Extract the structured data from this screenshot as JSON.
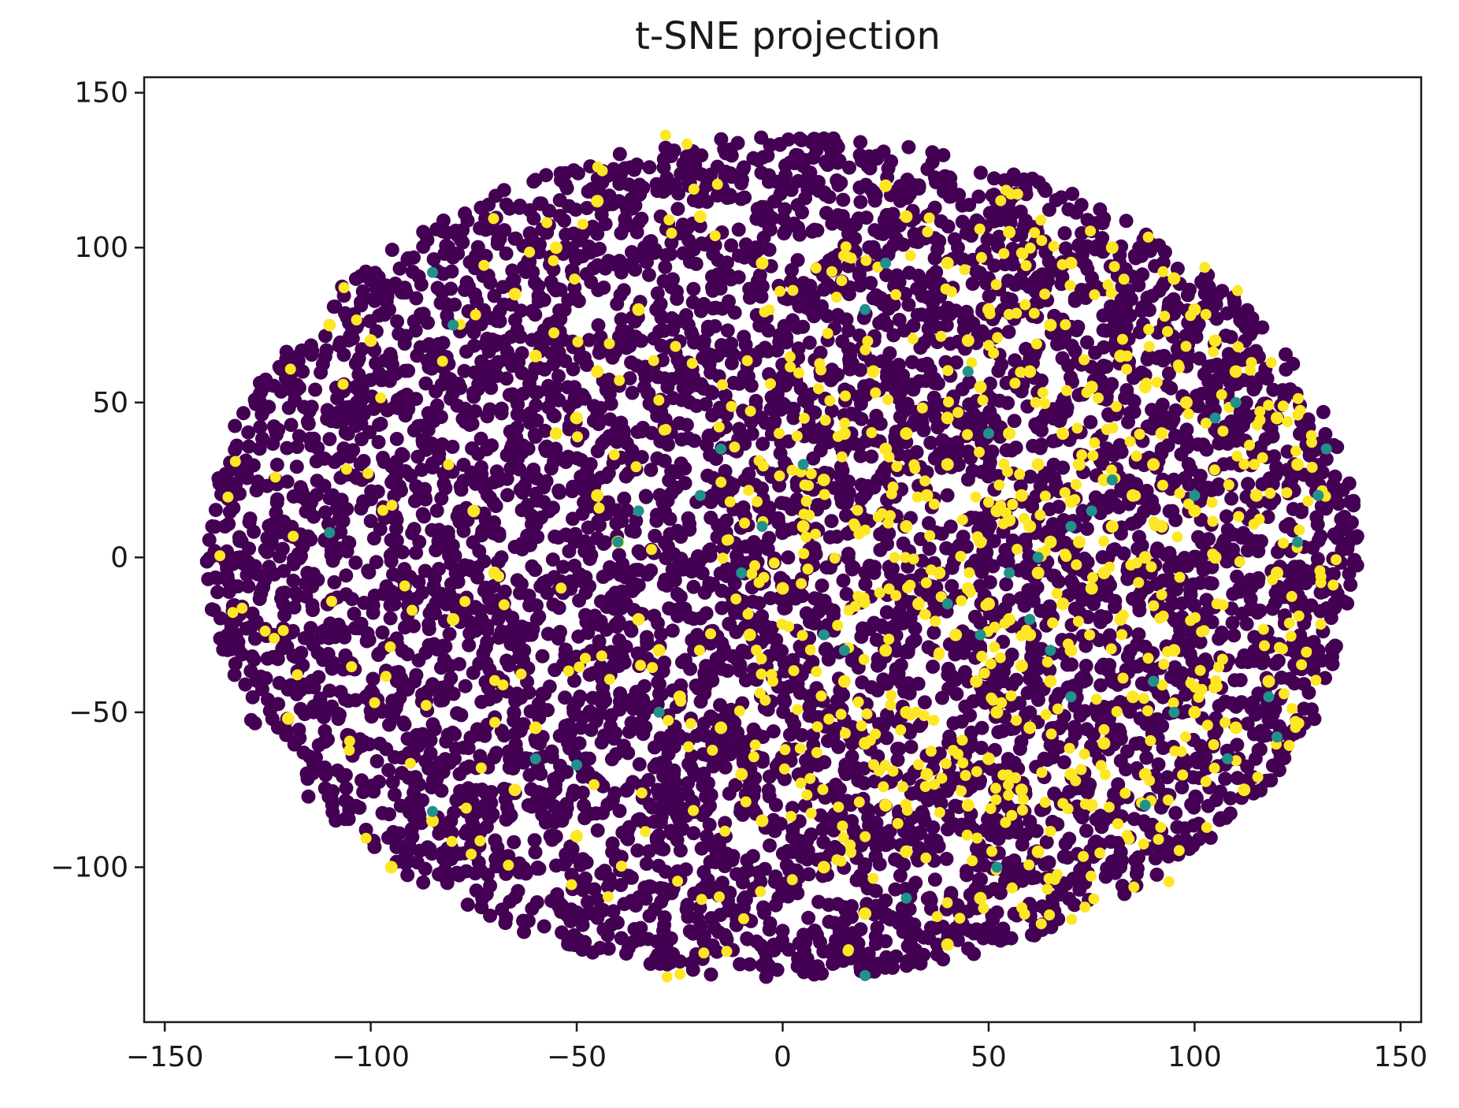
{
  "chart_data": {
    "type": "scatter",
    "title": "t-SNE projection",
    "xlabel": "",
    "ylabel": "",
    "xlim": [
      -155,
      155
    ],
    "ylim": [
      -150,
      155
    ],
    "xticks": [
      -150,
      -100,
      -50,
      0,
      50,
      100,
      150
    ],
    "xtick_labels": [
      "−150",
      "−100",
      "−50",
      "0",
      "50",
      "100",
      "150"
    ],
    "yticks": [
      -100,
      -50,
      0,
      50,
      100,
      150
    ],
    "ytick_labels": [
      "−100",
      "−50",
      "0",
      "50",
      "100",
      "150"
    ],
    "grid": false,
    "legend": "none",
    "colors": {
      "class_0": "#440154",
      "class_1": "#21918c",
      "class_2": "#fde725"
    },
    "shape": {
      "center": [
        0,
        0
      ],
      "radius_x": 140,
      "radius_y": 140
    },
    "series": [
      {
        "color": "#440154",
        "note_count": 6000,
        "points": []
      },
      {
        "color": "#fde725",
        "points": [
          [
            55,
            12
          ],
          [
            60,
            10
          ],
          [
            52,
            15
          ],
          [
            65,
            5
          ],
          [
            58,
            20
          ],
          [
            70,
            18
          ],
          [
            62,
            -5
          ],
          [
            50,
            -15
          ],
          [
            55,
            -20
          ],
          [
            60,
            -25
          ],
          [
            45,
            -10
          ],
          [
            48,
            5
          ],
          [
            72,
            30
          ],
          [
            78,
            25
          ],
          [
            68,
            40
          ],
          [
            80,
            10
          ],
          [
            85,
            20
          ],
          [
            90,
            30
          ],
          [
            75,
            -10
          ],
          [
            82,
            -20
          ],
          [
            70,
            -30
          ],
          [
            65,
            -40
          ],
          [
            58,
            -35
          ],
          [
            40,
            30
          ],
          [
            35,
            20
          ],
          [
            30,
            10
          ],
          [
            38,
            -5
          ],
          [
            42,
            -25
          ],
          [
            47,
            -40
          ],
          [
            52,
            -50
          ],
          [
            30,
            40
          ],
          [
            25,
            35
          ],
          [
            95,
            90
          ],
          [
            100,
            80
          ],
          [
            105,
            70
          ],
          [
            110,
            60
          ],
          [
            98,
            50
          ],
          [
            120,
            45
          ],
          [
            125,
            30
          ],
          [
            115,
            20
          ],
          [
            120,
            -5
          ],
          [
            118,
            -40
          ],
          [
            110,
            -55
          ],
          [
            112,
            -75
          ],
          [
            88,
            -70
          ],
          [
            75,
            -80
          ],
          [
            62,
            -95
          ],
          [
            48,
            -110
          ],
          [
            40,
            -125
          ],
          [
            20,
            -115
          ],
          [
            10,
            -100
          ],
          [
            -5,
            -85
          ],
          [
            -10,
            -70
          ],
          [
            -15,
            -55
          ],
          [
            -25,
            -45
          ],
          [
            -30,
            -30
          ],
          [
            -35,
            -20
          ],
          [
            -40,
            5
          ],
          [
            -45,
            20
          ],
          [
            -55,
            40
          ],
          [
            -60,
            65
          ],
          [
            -65,
            85
          ],
          [
            -55,
            100
          ],
          [
            -45,
            115
          ],
          [
            -20,
            110
          ],
          [
            -5,
            95
          ],
          [
            25,
            120
          ],
          [
            30,
            110
          ],
          [
            40,
            95
          ],
          [
            55,
            105
          ],
          [
            70,
            95
          ],
          [
            80,
            100
          ],
          [
            22,
            60
          ],
          [
            15,
            40
          ],
          [
            10,
            25
          ],
          [
            5,
            10
          ],
          [
            0,
            -10
          ],
          [
            -8,
            -25
          ],
          [
            15,
            -40
          ],
          [
            20,
            -60
          ],
          [
            25,
            -80
          ],
          [
            30,
            -95
          ],
          [
            -80,
            -20
          ],
          [
            -85,
            -85
          ],
          [
            -95,
            -100
          ],
          [
            -120,
            -52
          ],
          [
            -110,
            75
          ],
          [
            -100,
            70
          ],
          [
            -75,
            15
          ],
          [
            -70,
            -5
          ],
          [
            -60,
            -55
          ],
          [
            -50,
            -90
          ],
          [
            -65,
            -75
          ],
          [
            -45,
            60
          ],
          [
            -50,
            45
          ],
          [
            -35,
            80
          ],
          [
            60,
            60
          ],
          [
            65,
            75
          ],
          [
            50,
            80
          ],
          [
            45,
            70
          ],
          [
            88,
            55
          ],
          [
            92,
            40
          ],
          [
            100,
            15
          ],
          [
            105,
            0
          ],
          [
            95,
            -30
          ],
          [
            100,
            -50
          ],
          [
            85,
            -45
          ],
          [
            78,
            -60
          ],
          [
            70,
            -70
          ],
          [
            58,
            -75
          ],
          [
            45,
            -80
          ],
          [
            35,
            -70
          ],
          [
            30,
            -50
          ],
          [
            25,
            -30
          ],
          [
            33,
            -15
          ],
          [
            40,
            45
          ],
          [
            48,
            55
          ],
          [
            55,
            40
          ],
          [
            62,
            30
          ],
          [
            72,
            5
          ],
          [
            78,
            -5
          ],
          [
            88,
            0
          ],
          [
            92,
            10
          ],
          [
            68,
            -15
          ],
          [
            60,
            -55
          ],
          [
            50,
            -65
          ],
          [
            82,
            65
          ],
          [
            75,
            55
          ]
        ]
      },
      {
        "color": "#21918c",
        "points": [
          [
            -85,
            92
          ],
          [
            -80,
            75
          ],
          [
            -110,
            8
          ],
          [
            -60,
            -65
          ],
          [
            -50,
            -67
          ],
          [
            -85,
            -82
          ],
          [
            -30,
            -50
          ],
          [
            -20,
            20
          ],
          [
            -15,
            35
          ],
          [
            -10,
            -5
          ],
          [
            -5,
            10
          ],
          [
            5,
            30
          ],
          [
            10,
            -25
          ],
          [
            15,
            -30
          ],
          [
            20,
            80
          ],
          [
            25,
            95
          ],
          [
            45,
            60
          ],
          [
            50,
            40
          ],
          [
            55,
            -5
          ],
          [
            60,
            -20
          ],
          [
            65,
            -30
          ],
          [
            70,
            -45
          ],
          [
            75,
            15
          ],
          [
            80,
            25
          ],
          [
            90,
            -40
          ],
          [
            95,
            -50
          ],
          [
            100,
            20
          ],
          [
            105,
            45
          ],
          [
            110,
            50
          ],
          [
            118,
            -45
          ],
          [
            120,
            -58
          ],
          [
            125,
            5
          ],
          [
            130,
            20
          ],
          [
            132,
            35
          ],
          [
            108,
            -65
          ],
          [
            88,
            -80
          ],
          [
            52,
            -100
          ],
          [
            30,
            -110
          ],
          [
            20,
            -135
          ],
          [
            -40,
            5
          ],
          [
            -35,
            15
          ],
          [
            40,
            -15
          ],
          [
            48,
            -25
          ],
          [
            62,
            0
          ],
          [
            70,
            10
          ]
        ]
      }
    ]
  }
}
